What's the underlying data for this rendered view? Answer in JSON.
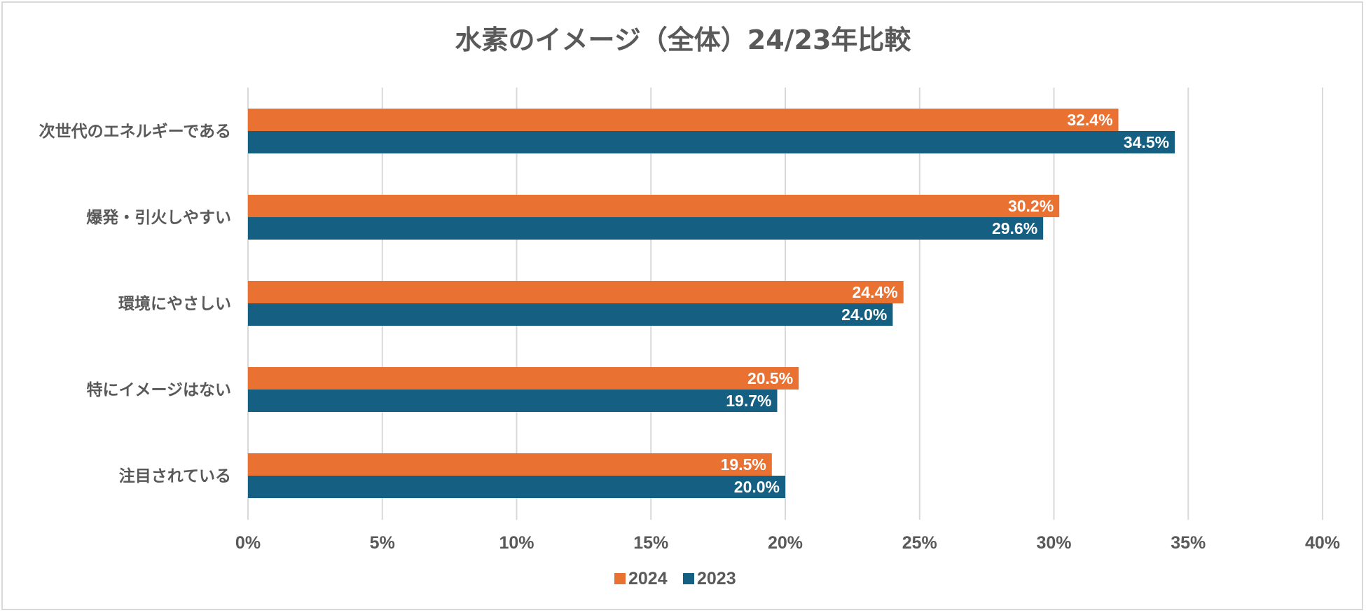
{
  "chart_data": {
    "type": "bar",
    "orientation": "horizontal",
    "title": "水素のイメージ（全体）24/23年比較",
    "categories": [
      "次世代のエネルギーである",
      "爆発・引火しやすい",
      "環境にやさしい",
      "特にイメージはない",
      "注目されている"
    ],
    "series": [
      {
        "name": "2024",
        "color": "#E97132",
        "values": [
          32.4,
          30.2,
          24.4,
          20.5,
          19.5
        ],
        "labels": [
          "32.4%",
          "30.2%",
          "24.4%",
          "20.5%",
          "19.5%"
        ]
      },
      {
        "name": "2023",
        "color": "#156082",
        "values": [
          34.5,
          29.6,
          24.0,
          19.7,
          20.0
        ],
        "labels": [
          "34.5%",
          "29.6%",
          "24.0%",
          "19.7%",
          "20.0%"
        ]
      }
    ],
    "xlim": [
      0,
      40
    ],
    "xticks": [
      0,
      5,
      10,
      15,
      20,
      25,
      30,
      35,
      40
    ],
    "xtick_labels": [
      "0%",
      "5%",
      "10%",
      "15%",
      "20%",
      "25%",
      "30%",
      "35%",
      "40%"
    ],
    "xlabel": "",
    "ylabel": "",
    "grid": true,
    "legend": "bottom-center"
  }
}
